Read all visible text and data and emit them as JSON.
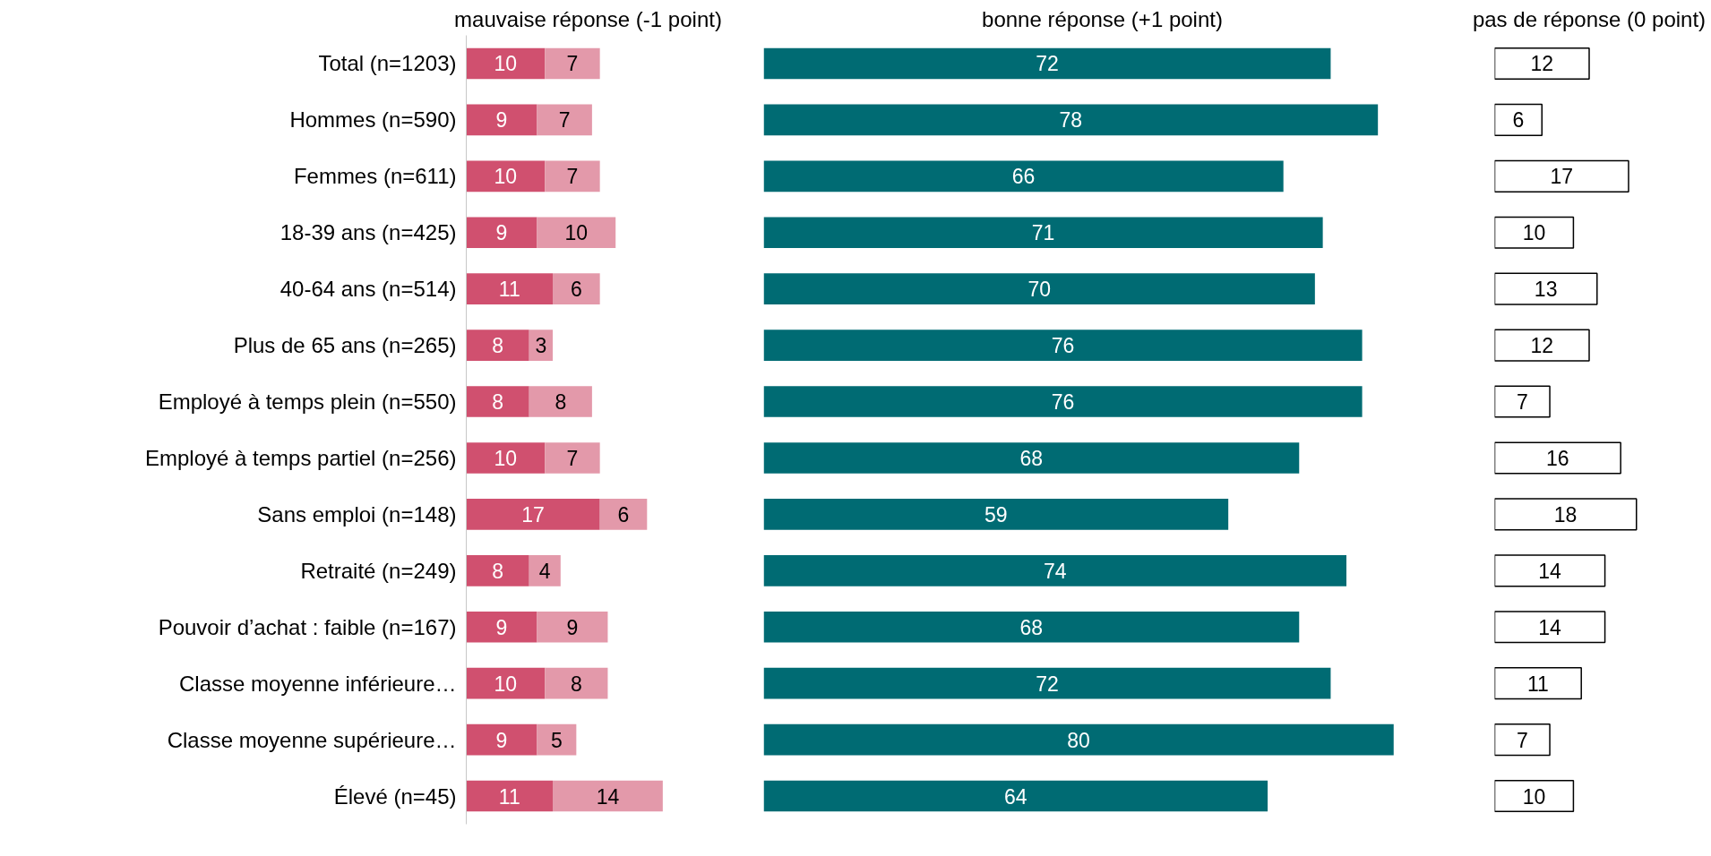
{
  "chart_data": [
    {
      "type": "bar",
      "orientation": "horizontal",
      "stacked": true,
      "title": "mauvaise réponse (-1 point)",
      "categories": [
        "Total (n=1203)",
        "Hommes (n=590)",
        "Femmes (n=611)",
        "18-39 ans (n=425)",
        "40-64 ans (n=514)",
        "Plus de 65 ans (n=265)",
        "Employé à temps plein (n=550)",
        "Employé à temps partiel (n=256)",
        "Sans emploi (n=148)",
        "Retraité (n=249)",
        "Pouvoir d’achat : faible (n=167)",
        "Classe moyenne inférieure…",
        "Classe moyenne supérieure…",
        "Élevé (n=45)"
      ],
      "series": [
        {
          "color": "#d0506f",
          "values": [
            10,
            9,
            10,
            9,
            11,
            8,
            8,
            10,
            17,
            8,
            9,
            10,
            9,
            11
          ]
        },
        {
          "color": "#e399aa",
          "values": [
            7,
            7,
            7,
            10,
            6,
            3,
            8,
            7,
            6,
            4,
            9,
            8,
            5,
            14
          ]
        }
      ],
      "data_labels": true,
      "tick_labels": "y"
    },
    {
      "type": "bar",
      "orientation": "horizontal",
      "title": "bonne réponse (+1 point)",
      "series": [
        {
          "color": "#006b73",
          "values": [
            72,
            78,
            66,
            71,
            70,
            76,
            76,
            68,
            59,
            74,
            68,
            72,
            80,
            64
          ]
        }
      ],
      "data_labels": true,
      "tick_labels": false
    },
    {
      "type": "bar",
      "orientation": "horizontal",
      "title": "pas de réponse (0 point)",
      "series": [
        {
          "color": "#ffffff",
          "values": [
            12,
            6,
            17,
            10,
            13,
            12,
            7,
            16,
            18,
            14,
            14,
            11,
            7,
            10
          ]
        }
      ],
      "data_labels": true,
      "tick_labels": false
    }
  ]
}
